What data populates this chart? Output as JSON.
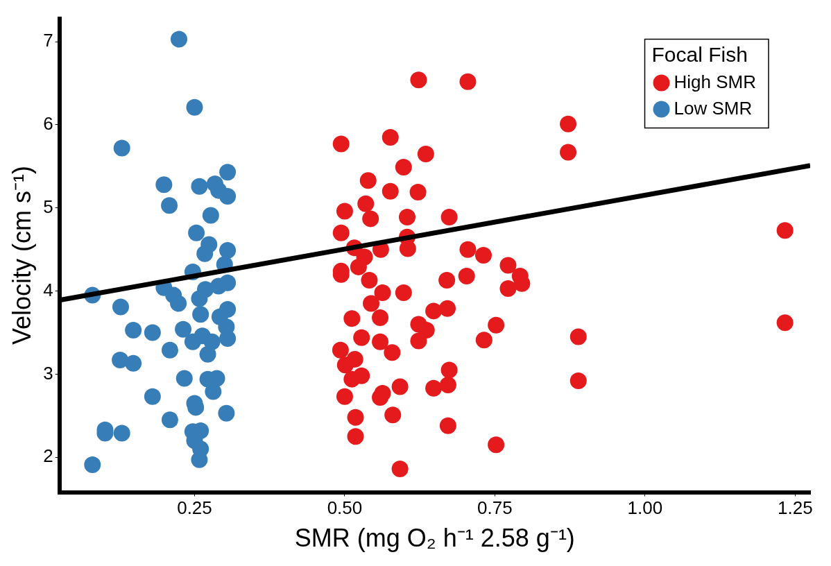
{
  "chart_data": {
    "type": "scatter",
    "xlabel": "SMR (mg O₂ h⁻¹ 2.58 g⁻¹)",
    "ylabel": "Velocity (cm s⁻¹)",
    "legend_title": "Focal Fish",
    "legend": "top right",
    "grid": false,
    "marker": "circle",
    "xlim": [
      0.025,
      1.275
    ],
    "ylim": [
      1.58,
      7.28
    ],
    "xticks": [
      0.25,
      {
        "value": 0.5,
        "label": "0.50"
      },
      {
        "value": 0.75,
        "label": "0.75"
      },
      {
        "value": 1.0,
        "label": "1.00"
      },
      1.25
    ],
    "yticks": [
      2,
      3,
      4,
      5,
      6,
      7
    ],
    "series": [
      {
        "name": "High SMR",
        "color": "#e41a1c",
        "x": [
          0.623,
          0.705,
          0.494,
          0.576,
          0.635,
          0.598,
          0.539,
          0.576,
          0.622,
          0.5,
          0.535,
          0.543,
          0.604,
          0.674,
          0.494,
          0.604,
          0.605,
          0.516,
          0.56,
          0.533,
          0.523,
          0.494,
          0.494,
          0.541,
          0.67,
          0.703,
          0.705,
          0.731,
          0.772,
          0.792,
          0.795,
          0.772,
          0.563,
          0.598,
          0.544,
          0.512,
          0.559,
          0.648,
          0.671,
          0.623,
          0.636,
          0.623,
          0.752,
          0.732,
          0.493,
          0.528,
          0.559,
          0.579,
          0.501,
          0.517,
          0.512,
          0.528,
          0.592,
          0.563,
          0.559,
          0.648,
          0.674,
          0.672,
          0.5,
          0.518,
          0.58,
          0.672,
          0.518,
          0.752,
          0.592,
          0.872,
          0.872,
          0.889,
          0.889,
          1.233,
          1.233
        ],
        "values": [
          6.54,
          6.52,
          5.77,
          5.85,
          5.65,
          5.49,
          5.33,
          5.2,
          5.19,
          4.96,
          5.05,
          4.87,
          4.89,
          4.89,
          4.7,
          4.65,
          4.51,
          4.52,
          4.5,
          4.41,
          4.29,
          4.2,
          4.24,
          4.13,
          4.13,
          4.18,
          4.5,
          4.43,
          4.31,
          4.18,
          4.09,
          4.03,
          3.98,
          3.98,
          3.85,
          3.67,
          3.68,
          3.76,
          3.79,
          3.6,
          3.53,
          3.4,
          3.59,
          3.41,
          3.29,
          3.44,
          3.39,
          3.26,
          3.11,
          3.18,
          2.94,
          2.98,
          2.85,
          2.77,
          2.72,
          2.83,
          3.05,
          2.87,
          2.73,
          2.48,
          2.51,
          2.38,
          2.25,
          2.15,
          1.86,
          6.01,
          5.67,
          3.45,
          2.92,
          4.73,
          3.62
        ]
      },
      {
        "name": "Low SMR",
        "color": "#377eb8",
        "x": [
          0.224,
          0.25,
          0.129,
          0.199,
          0.208,
          0.258,
          0.284,
          0.29,
          0.305,
          0.305,
          0.277,
          0.253,
          0.274,
          0.267,
          0.305,
          0.3,
          0.247,
          0.08,
          0.199,
          0.215,
          0.223,
          0.268,
          0.29,
          0.305,
          0.127,
          0.258,
          0.26,
          0.292,
          0.305,
          0.303,
          0.148,
          0.18,
          0.231,
          0.247,
          0.263,
          0.279,
          0.305,
          0.209,
          0.272,
          0.126,
          0.148,
          0.233,
          0.272,
          0.287,
          0.281,
          0.18,
          0.25,
          0.252,
          0.303,
          0.209,
          0.101,
          0.129,
          0.247,
          0.26,
          0.25,
          0.26,
          0.258,
          0.08,
          0.101
        ],
        "values": [
          7.03,
          6.21,
          5.72,
          5.28,
          5.03,
          5.26,
          5.29,
          5.21,
          5.43,
          5.14,
          4.91,
          4.7,
          4.56,
          4.45,
          4.49,
          4.32,
          4.23,
          3.95,
          4.04,
          3.95,
          3.85,
          4.02,
          4.06,
          4.1,
          3.81,
          3.91,
          3.72,
          3.69,
          3.78,
          3.57,
          3.53,
          3.5,
          3.54,
          3.39,
          3.46,
          3.39,
          3.43,
          3.29,
          3.24,
          3.17,
          3.13,
          2.95,
          2.94,
          2.95,
          2.79,
          2.73,
          2.65,
          2.6,
          2.53,
          2.45,
          2.33,
          2.29,
          2.31,
          2.32,
          2.2,
          2.1,
          1.97,
          1.91,
          2.29
        ]
      },
      {
        "type": "line",
        "marker": "none",
        "color": "#000000",
        "x": [
          0.025,
          1.275
        ],
        "values": [
          3.89,
          5.51
        ]
      }
    ]
  }
}
